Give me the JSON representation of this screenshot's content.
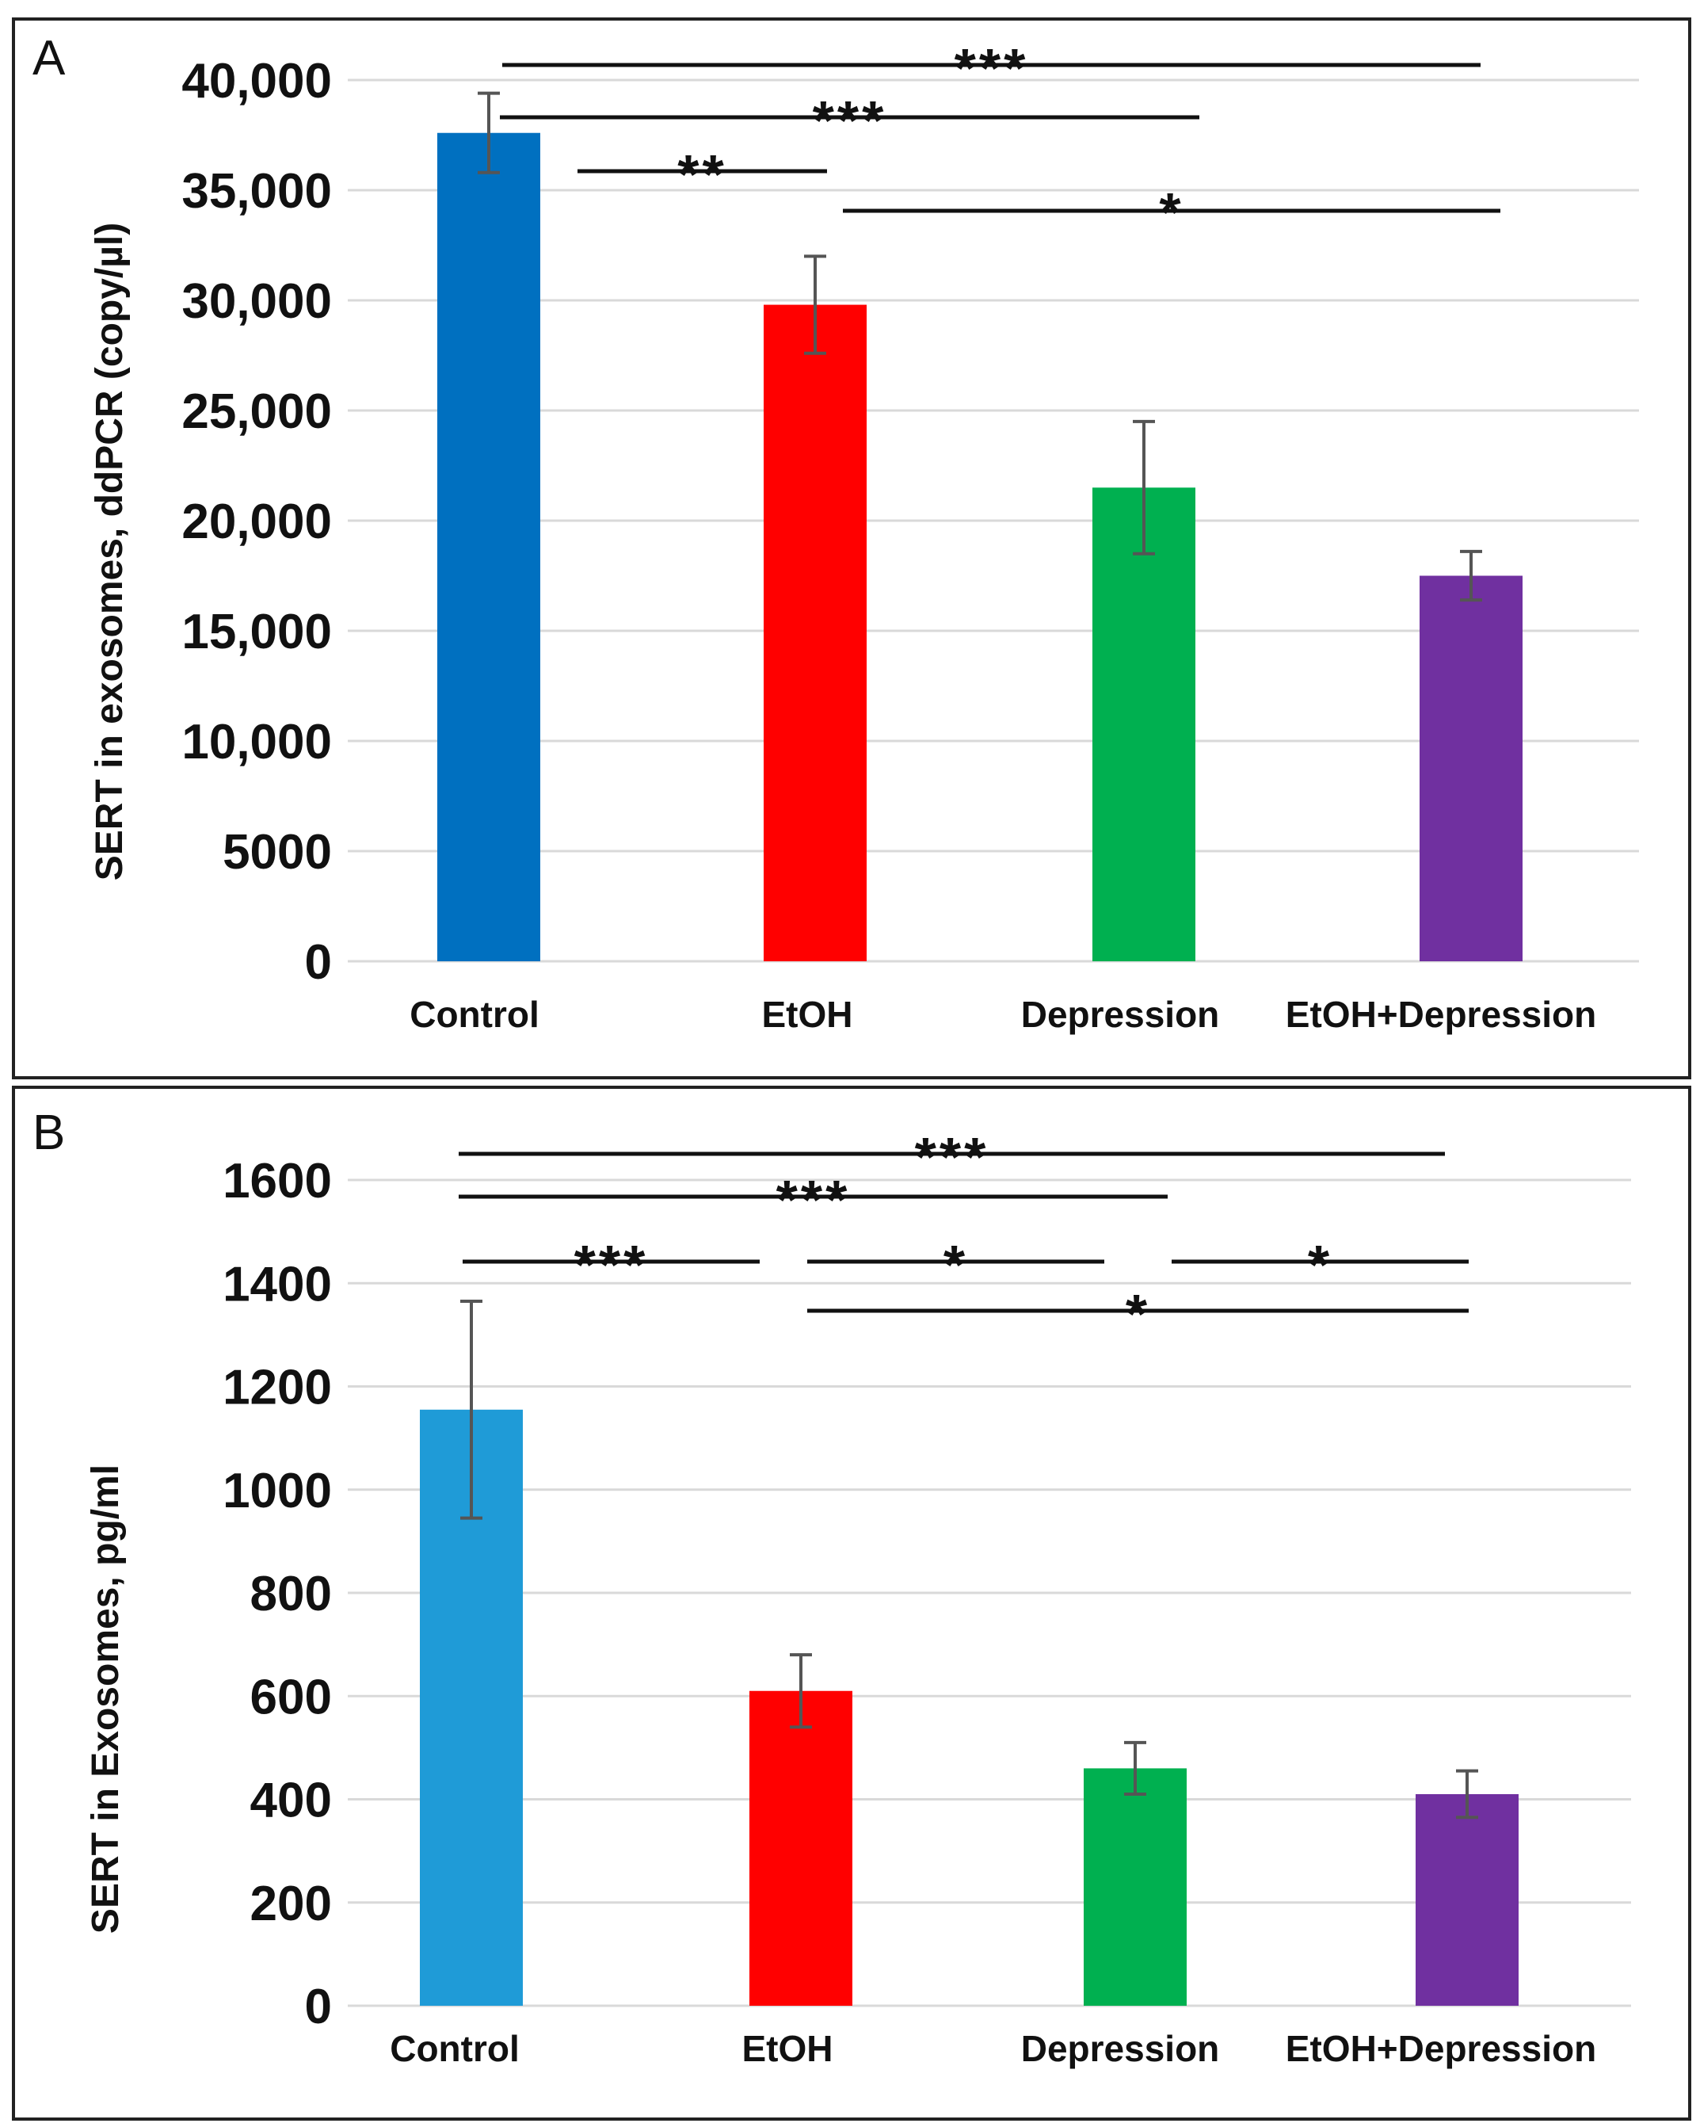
{
  "chart_data": [
    {
      "panel_label": "A",
      "type": "bar",
      "ylabel": "SERT in exosomes, ddPCR  (copy/µl)",
      "xlabel": "",
      "categories": [
        "Control",
        "EtOH",
        "Depression",
        "EtOH+Depression"
      ],
      "values": [
        37600,
        29800,
        21500,
        17500
      ],
      "errors": [
        1800,
        2200,
        3000,
        1100
      ],
      "colors": [
        "#0070C0",
        "#FF0000",
        "#00B050",
        "#7030A0"
      ],
      "ylim": [
        0,
        40000
      ],
      "ticks": [
        0,
        5000,
        10000,
        15000,
        20000,
        25000,
        30000,
        35000,
        40000
      ],
      "tick_labels": [
        "0",
        "5000",
        "10,000",
        "15,000",
        "20,000",
        "25,000",
        "30,000",
        "35,000",
        "40,000"
      ],
      "grid": true,
      "significance": [
        {
          "from": 0,
          "to": 3,
          "stars": "***"
        },
        {
          "from": 0,
          "to": 2,
          "stars": "***"
        },
        {
          "from": 0,
          "to": 1,
          "stars": "**"
        },
        {
          "from": 1,
          "to": 3,
          "stars": "*"
        }
      ]
    },
    {
      "panel_label": "B",
      "type": "bar",
      "ylabel": "SERT in Exosomes, pg/ml",
      "xlabel": "",
      "categories": [
        "Control",
        "EtOH",
        "Depression",
        "EtOH+Depression"
      ],
      "values": [
        1155,
        610,
        460,
        410
      ],
      "errors": [
        210,
        70,
        50,
        45
      ],
      "colors": [
        "#1F9BD7",
        "#FF0000",
        "#00B050",
        "#7030A0"
      ],
      "ylim": [
        0,
        1600
      ],
      "ticks": [
        0,
        200,
        400,
        600,
        800,
        1000,
        1200,
        1400,
        1600
      ],
      "tick_labels": [
        "0",
        "200",
        "400",
        "600",
        "800",
        "1000",
        "1200",
        "1400",
        "1600"
      ],
      "grid": true,
      "significance": [
        {
          "from": 0,
          "to": 3,
          "stars": "***"
        },
        {
          "from": 0,
          "to": 2,
          "stars": "***"
        },
        {
          "from": 0,
          "to": 1,
          "stars": "***"
        },
        {
          "from": 1,
          "to": 2,
          "stars": "*"
        },
        {
          "from": 2,
          "to": 3,
          "stars": "*"
        },
        {
          "from": 1,
          "to": 3,
          "stars": "*"
        }
      ]
    }
  ]
}
